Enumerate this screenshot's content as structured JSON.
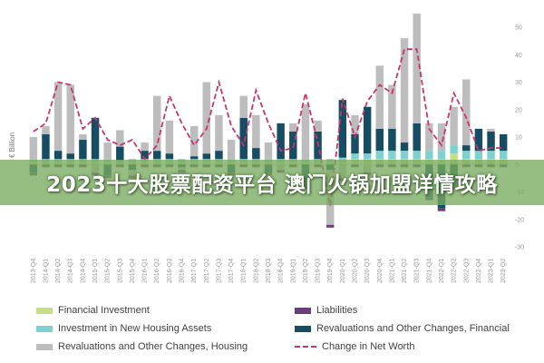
{
  "banner": {
    "text": "2023十大股票配资平台 澳门火锅加盟详情攻略"
  },
  "colors": {
    "financial_investment": "#c9dd86",
    "housing_investment": "#7fd1cf",
    "housing_revaluations": "#bdbdbd",
    "liabilities": "#6b3d7c",
    "financial_revaluations": "#164d63",
    "net_worth": "#c7356e",
    "banner": "#78aa5f"
  },
  "legend": {
    "financial_investment": "Financial Investment",
    "housing_investment": "Investment in New Housing Assets",
    "housing_revaluations": "Revaluations and Other Changes, Housing",
    "liabilities": "Liabilities",
    "financial_revaluations": "Revaluations and Other Changes, Financial",
    "net_worth": "Change in Net Worth"
  },
  "chart_data": {
    "type": "bar",
    "stacked": true,
    "ylabel": "€ Billion",
    "ylim": [
      -30,
      50
    ],
    "yticks": [
      -30,
      -20,
      -10,
      0,
      10,
      20,
      30,
      40,
      50
    ],
    "grid": false,
    "legend_position": "bottom",
    "categories": [
      "2013-Q4",
      "2014-Q1",
      "2014-Q2",
      "2014-Q3",
      "2014-Q4",
      "2015-Q1",
      "2015-Q2",
      "2015-Q3",
      "2015-Q4",
      "2016-Q1",
      "2016-Q2",
      "2016-Q3",
      "2016-Q4",
      "2017-Q1",
      "2017-Q2",
      "2017-Q3",
      "2017-Q4",
      "2018-Q1",
      "2018-Q2",
      "2018-Q3",
      "2018-Q4",
      "2019-Q1",
      "2019-Q2",
      "2019-Q3",
      "2019-Q4",
      "2020-Q1",
      "2020-Q2",
      "2020-Q3",
      "2020-Q4",
      "2021-Q1",
      "2021-Q2",
      "2021-Q3",
      "2021-Q4",
      "2022-Q1",
      "2022-Q2",
      "2022-Q3",
      "2022-Q4",
      "2023-Q1",
      "2023-Q2"
    ],
    "series": [
      {
        "name": "Financial Investment",
        "type": "bar",
        "color_key": "financial_investment",
        "values": [
          1,
          1,
          1,
          1,
          1,
          1,
          1,
          0.5,
          1,
          1,
          1,
          1,
          1,
          1,
          1,
          1,
          1,
          1,
          1,
          1,
          1,
          1,
          1,
          1,
          1,
          1,
          2,
          2,
          2,
          2,
          2,
          2,
          2,
          2,
          4,
          2,
          2,
          2,
          2
        ]
      },
      {
        "name": "Investment in New Housing Assets",
        "type": "bar",
        "color_key": "housing_investment",
        "values": [
          1,
          1,
          1,
          1,
          1,
          1,
          1,
          1,
          1,
          1,
          1,
          1,
          1,
          1,
          1,
          1,
          1,
          1,
          1,
          1,
          1,
          1,
          1,
          1,
          1,
          1.5,
          2,
          2,
          3,
          3,
          3,
          3,
          3,
          3,
          3,
          3,
          3,
          3,
          3
        ]
      },
      {
        "name": "Revaluations and Other Changes, Financial",
        "type": "bar",
        "color_key": "financial_revaluations",
        "values": [
          -3,
          9,
          3,
          2,
          7,
          15,
          -4,
          5,
          -2,
          3,
          3,
          2,
          -1,
          1,
          2,
          3,
          -3,
          15,
          4,
          -3,
          13,
          10,
          -8,
          10,
          -2,
          21,
          7,
          17,
          8,
          8,
          3,
          10,
          -12,
          -16,
          -8,
          2,
          8,
          7,
          6
        ]
      },
      {
        "name": "Revaluations and Other Changes, Housing",
        "type": "bar",
        "color_key": "housing_revaluations",
        "values": [
          8,
          3,
          25,
          25,
          2,
          -3,
          6,
          6,
          -2,
          3,
          20,
          12,
          -1,
          11,
          26,
          13,
          7,
          8,
          12,
          6,
          -2,
          3,
          20,
          4,
          -20,
          -5,
          7,
          -3,
          23,
          16,
          38,
          40,
          10,
          10,
          14,
          24,
          0,
          1,
          0
        ]
      },
      {
        "name": "Liabilities",
        "type": "bar",
        "color_key": "liabilities",
        "values": [
          -1,
          -1,
          -1,
          -1,
          -1,
          -1,
          -1,
          -1,
          -1,
          -1,
          -1,
          -1,
          -1,
          -1,
          -1,
          -1,
          -1,
          -1,
          -1,
          -1,
          -1,
          -1,
          -1,
          -1,
          -1,
          -1,
          -1,
          -1,
          -1,
          -1,
          -1,
          -1,
          -1,
          -1,
          -1,
          -1,
          -1,
          -1,
          -1
        ]
      },
      {
        "name": "Change in Net Worth",
        "type": "line",
        "color_key": "net_worth",
        "values": [
          12,
          15,
          30,
          29,
          13,
          17,
          9,
          7,
          9,
          2,
          7,
          25,
          15,
          7,
          13,
          30,
          14,
          7,
          27,
          15,
          5,
          6,
          26,
          8,
          -15,
          24,
          10,
          23,
          29,
          26,
          42,
          42,
          13,
          7,
          26,
          17,
          5,
          6,
          6
        ]
      }
    ]
  }
}
